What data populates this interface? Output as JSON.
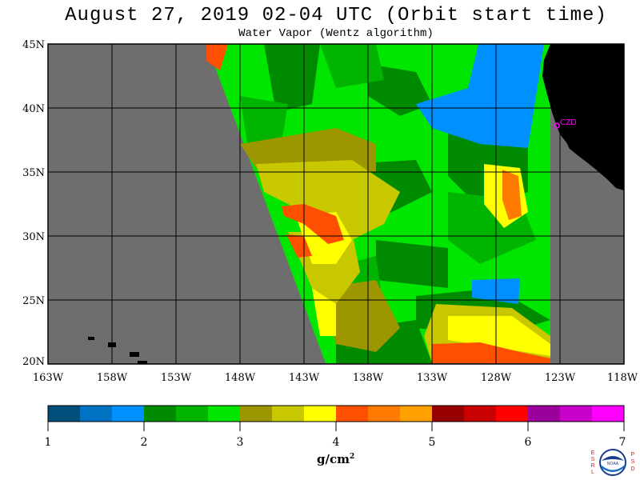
{
  "title": "August 27, 2019  02-04 UTC  (Orbit start time)",
  "subtitle": "Water Vapor (Wentz algorithm)",
  "map": {
    "lat_labels": [
      "45N",
      "40N",
      "35N",
      "30N",
      "25N",
      "20N"
    ],
    "lon_labels": [
      "163W",
      "158W",
      "153W",
      "148W",
      "143W",
      "138W",
      "133W",
      "128W",
      "123W",
      "118W"
    ],
    "station_label": "CZD",
    "colors": {
      "no_data": "#6e6e6e",
      "land": "#000000",
      "grid": "#000000",
      "station": "#ff00ff"
    }
  },
  "colorbar": {
    "tick_labels": [
      "1",
      "2",
      "3",
      "4",
      "5",
      "6",
      "7"
    ],
    "unit_base": "g/cm",
    "unit_exp": "2",
    "colors": [
      "#004f7a",
      "#0072c4",
      "#0090ff",
      "#008a00",
      "#00b400",
      "#00e600",
      "#9c9600",
      "#c8c800",
      "#ffff00",
      "#ff4f00",
      "#ff7a00",
      "#ffa000",
      "#960000",
      "#c80000",
      "#ff0000",
      "#9c009c",
      "#c800c8",
      "#ff00ff"
    ]
  },
  "logo": {
    "left_letters": [
      "E",
      "S",
      "R",
      "L"
    ],
    "right_letters": [
      "P",
      "S",
      "D"
    ],
    "center_text": "NOAA"
  }
}
